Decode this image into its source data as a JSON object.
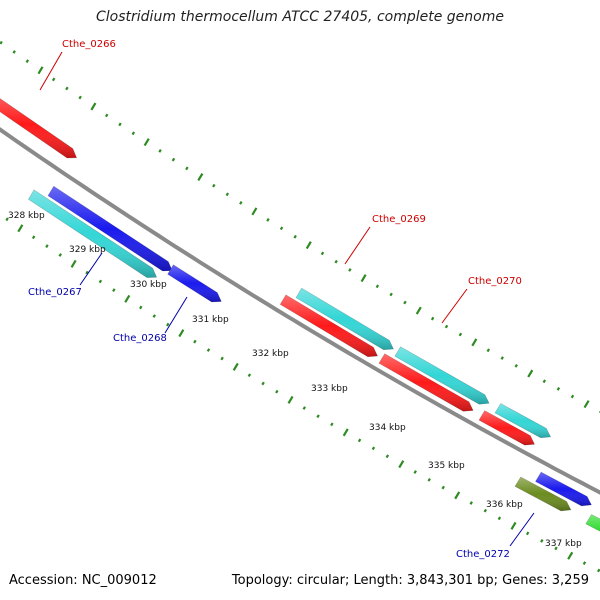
{
  "title": "Clostridium thermocellum ATCC 27405, complete genome",
  "footer": {
    "accession": "Accession: NC_009012",
    "stats": "Topology: circular; Length: 3,843,301 bp; Genes: 3,259"
  },
  "colors": {
    "backbone": "#8a8a8a",
    "tick": "#2e8b22",
    "forward_gene_label": "#cc0000",
    "reverse_gene_label": "#0000aa",
    "red": "#ff1a1a",
    "cyan": "#33d6d6",
    "blue": "#1a1aee",
    "olive": "#6b8c1f",
    "green": "#33dd33"
  },
  "kbp_labels": [
    "328 kbp",
    "329 kbp",
    "330 kbp",
    "331 kbp",
    "332 kbp",
    "333 kbp",
    "334 kbp",
    "335 kbp",
    "336 kbp",
    "337 kbp"
  ],
  "gene_labels": [
    {
      "name": "Cthe_0266",
      "strand": "forward"
    },
    {
      "name": "Cthe_0267",
      "strand": "reverse"
    },
    {
      "name": "Cthe_0268",
      "strand": "reverse"
    },
    {
      "name": "Cthe_0269",
      "strand": "forward"
    },
    {
      "name": "Cthe_0270",
      "strand": "forward"
    },
    {
      "name": "Cthe_0272",
      "strand": "reverse"
    }
  ]
}
